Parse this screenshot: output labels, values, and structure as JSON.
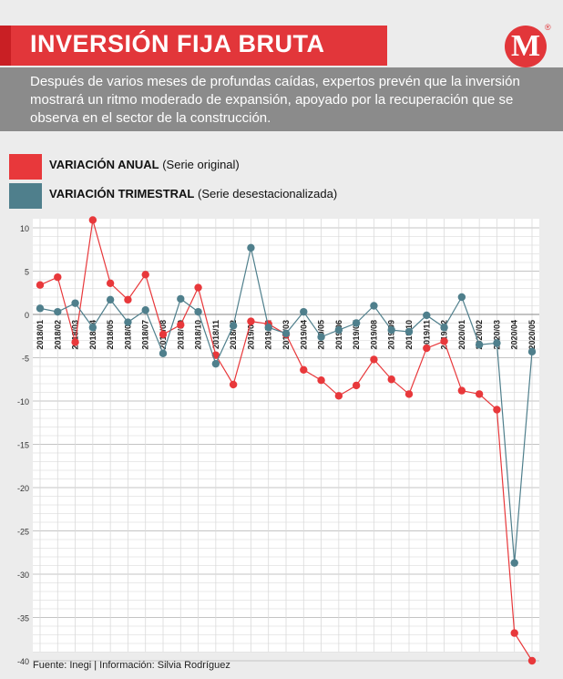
{
  "header": {
    "title": "INVERSIÓN FIJA BRUTA",
    "subtitle": "Después de varios meses de profundas caídas, expertos prevén que la inversión mostrará un ritmo moderado de expansión, apoyado por la recuperación que se observa en el sector de la construcción.",
    "logo": "M",
    "logo_reg": "®"
  },
  "legend": {
    "anual_bold": "VARIACIÓN ANUAL",
    "anual_rest": " (Serie original)",
    "trimestral_bold": "VARIACIÓN TRIMESTRAL",
    "trimestral_rest": " (Serie desestacionalizada)"
  },
  "footer": {
    "source": "Fuente: Inegi | Información: Silvia Rodríguez"
  },
  "colors": {
    "anual": "#e8383b",
    "trimestral": "#4f7f8c",
    "title_bg": "#e2363a",
    "subtitle_bg": "#8b8b8b"
  },
  "chart_data": {
    "type": "line",
    "x": [
      "2018/01",
      "2018/02",
      "2018/03",
      "2018/04",
      "2018/05",
      "2018/06",
      "2018/07",
      "2018/08",
      "2018/09",
      "2018/10",
      "2018/11",
      "2018/12",
      "2019/01",
      "2019/02",
      "2019/03",
      "2019/04",
      "2019/05",
      "2019/06",
      "2019/07",
      "2019/08",
      "2019/09",
      "2019/10",
      "2019/11",
      "2019/12",
      "2020/01",
      "2020/02",
      "2020/03",
      "2020/04",
      "2020/05"
    ],
    "series": [
      {
        "key": "anual",
        "values": [
          3.4,
          4.3,
          -3.2,
          10.9,
          3.6,
          1.7,
          4.6,
          -2.3,
          -1.2,
          3.1,
          -4.7,
          -8.1,
          -0.8,
          -1.1,
          -2.3,
          -6.4,
          -7.6,
          -9.4,
          -8.2,
          -5.2,
          -7.5,
          -9.2,
          -3.9,
          -3.1,
          -8.8,
          -9.2,
          -11.0,
          -36.8,
          -40.0
        ]
      },
      {
        "key": "trimestral",
        "values": [
          0.7,
          0.3,
          1.3,
          -1.5,
          1.7,
          -0.9,
          0.5,
          -4.5,
          1.8,
          0.3,
          -5.7,
          -1.3,
          7.7,
          -1.5,
          -2.2,
          0.3,
          -2.6,
          -1.8,
          -1.0,
          1.0,
          -1.8,
          -2.0,
          -0.1,
          -1.5,
          2.0,
          -3.5,
          -3.3,
          -28.7,
          -4.3
        ]
      }
    ],
    "yticks": [
      10,
      5,
      0,
      -5,
      -10,
      -15,
      -20,
      -25,
      -30,
      -35,
      -40
    ],
    "ylim": [
      -40,
      10
    ],
    "grid": true
  }
}
